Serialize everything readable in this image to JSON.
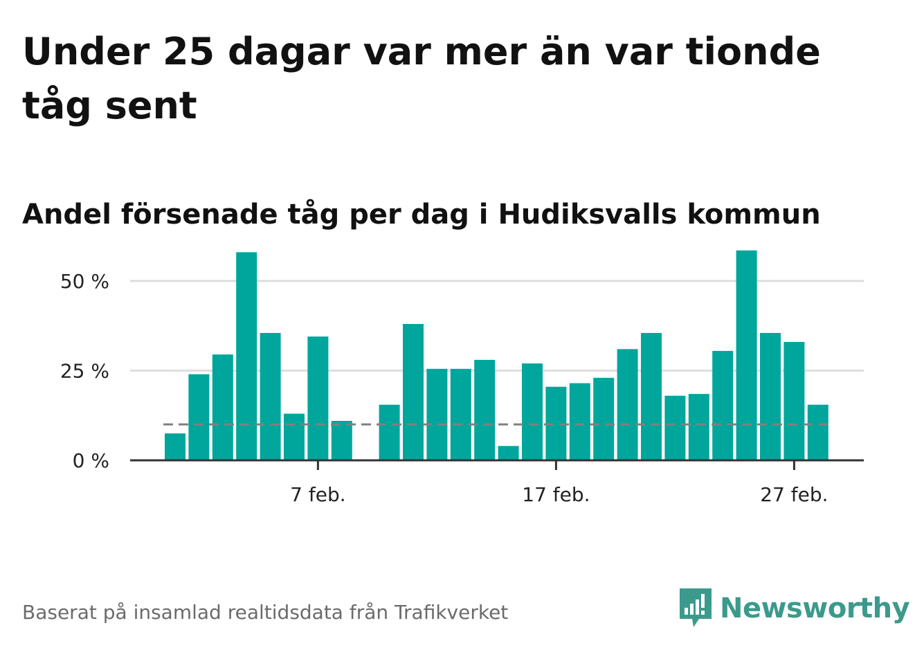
{
  "title": "Under 25 dagar var mer än var tionde tåg sent",
  "subtitle": "Andel försenade tåg per dag i Hudiksvalls kommun",
  "footer": "Baserat på insamlad realtidsdata från Trafikverket",
  "logo": {
    "name": "Newsworthy",
    "icon": "bar-chart-speech-bubble-icon",
    "color": "#3b9a8c"
  },
  "colors": {
    "bar": "#00a69c",
    "threshold": "#808080",
    "grid": "#dddddd",
    "axis": "#333333"
  },
  "chart_data": {
    "type": "bar",
    "x_unit": "day of February",
    "x": [
      1,
      2,
      3,
      4,
      5,
      6,
      7,
      8,
      9,
      10,
      11,
      12,
      13,
      14,
      15,
      16,
      17,
      18,
      19,
      20,
      21,
      22,
      23,
      24,
      25,
      26,
      27,
      28
    ],
    "values": [
      7.5,
      24,
      29.5,
      58,
      35.5,
      13,
      34.5,
      11,
      null,
      15.5,
      38,
      25.5,
      25.5,
      28,
      4,
      27,
      20.5,
      21.5,
      23,
      31,
      35.5,
      18,
      18.5,
      30.5,
      58.5,
      35.5,
      33,
      15.5
    ],
    "threshold": 10,
    "ylim": [
      0,
      60
    ],
    "y_ticks": [
      {
        "value": 0,
        "label": "0 %"
      },
      {
        "value": 25,
        "label": "25 %"
      },
      {
        "value": 50,
        "label": "50 %"
      }
    ],
    "x_ticks": [
      {
        "value": 7,
        "label": "7 feb."
      },
      {
        "value": 17,
        "label": "17 feb."
      },
      {
        "value": 27,
        "label": "27 feb."
      }
    ],
    "grid": true,
    "legend": "none"
  }
}
